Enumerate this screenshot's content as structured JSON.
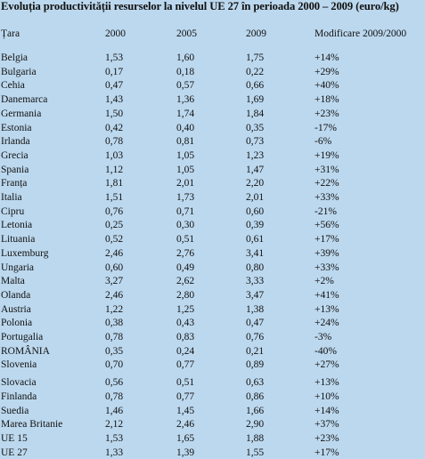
{
  "title": "Evoluția productivității resurselor la nivelul UE 27 în perioada 2000 – 2009 (euro/kg)",
  "headers": [
    "Țara",
    "2000",
    "2005",
    "2009",
    "Modificare 2009/2000"
  ],
  "rows": [
    [
      "Belgia",
      "1,53",
      "1,60",
      "1,75",
      "+14%"
    ],
    [
      "Bulgaria",
      "0,17",
      "0,18",
      "0,22",
      "+29%"
    ],
    [
      "Cehia",
      "0,47",
      "0,57",
      "0,66",
      "+40%"
    ],
    [
      "Danemarca",
      "1,43",
      "1,36",
      "1,69",
      "+18%"
    ],
    [
      "Germania",
      "1,50",
      "1,74",
      "1,84",
      "+23%"
    ],
    [
      "Estonia",
      "0,42",
      "0,40",
      "0,35",
      "-17%"
    ],
    [
      "Irlanda",
      "0,78",
      "0,81",
      "0,73",
      "-6%"
    ],
    [
      "Grecia",
      "1,03",
      "1,05",
      "1,23",
      "+19%"
    ],
    [
      "Spania",
      "1,12",
      "1,05",
      "1,47",
      "+31%"
    ],
    [
      "Franța",
      "1,81",
      "2,01",
      "2,20",
      "+22%"
    ],
    [
      "Italia",
      "1,51",
      "1,73",
      "2,01",
      "+33%"
    ],
    [
      "Cipru",
      "0,76",
      "0,71",
      "0,60",
      "-21%"
    ],
    [
      "Letonia",
      "0,25",
      "0,30",
      "0,39",
      "+56%"
    ],
    [
      "Lituania",
      "0,52",
      "0,51",
      "0,61",
      "+17%"
    ],
    [
      "Luxemburg",
      "2,46",
      "2,76",
      "3,41",
      "+39%"
    ],
    [
      "Ungaria",
      "0,60",
      "0,49",
      "0,80",
      "+33%"
    ],
    [
      "Malta",
      "3,27",
      "2,62",
      "3,33",
      "+2%"
    ],
    [
      "Olanda",
      "2,46",
      "2,80",
      "3,47",
      "+41%"
    ],
    [
      "Austria",
      "1,22",
      "1,25",
      "1,38",
      "+13%"
    ],
    [
      "Polonia",
      "0,38",
      "0,43",
      "0,47",
      "+24%"
    ],
    [
      "Portugalia",
      "0,78",
      "0,83",
      "0,76",
      "-3%"
    ],
    [
      "ROMÂNIA",
      "0,35",
      "0,24",
      "0,21",
      "-40%"
    ],
    [
      "Slovenia",
      "0,70",
      "0,77",
      "0,89",
      "+27%"
    ],
    [
      "Slovacia",
      "0,56",
      "0,51",
      "0,63",
      "+13%"
    ],
    [
      "Finlanda",
      "0,78",
      "0,77",
      "0,86",
      "+10%"
    ],
    [
      "Suedia",
      "1,46",
      "1,45",
      "1,66",
      "+14%"
    ],
    [
      "Marea Britanie",
      "2,12",
      "2,46",
      "2,90",
      "+37%"
    ],
    [
      "UE 15",
      "1,53",
      "1,65",
      "1,88",
      "+23%"
    ],
    [
      "UE 27",
      "1,33",
      "1,39",
      "1,55",
      "+17%"
    ]
  ]
}
